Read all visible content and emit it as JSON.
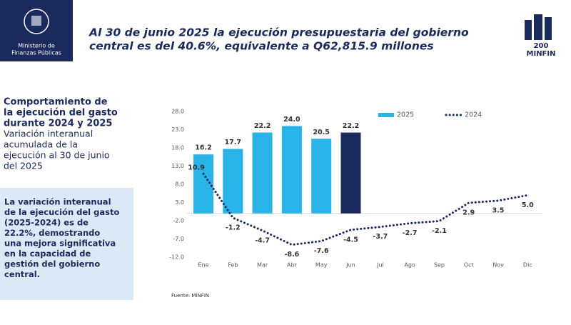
{
  "header": {
    "ministry": [
      "Ministerio de",
      "Finanzas Públicas"
    ],
    "title": [
      "Al 30 de junio 2025 la ejecución presupuestaria del gobierno",
      "central es del 40.6%, equivalente a Q62,815.9 millones"
    ],
    "badge": [
      "200",
      "MINFIN"
    ]
  },
  "side": {
    "heading": [
      "Comportamiento de",
      "la ejecución del gasto",
      "durante 2024 y 2025"
    ],
    "subheading": [
      "Variación interanual",
      "acumulada de la",
      "ejecución al 30 de junio",
      "del 2025"
    ],
    "note": [
      "La variación interanual",
      "de la ejecución del gasto",
      "(2025-2024) es de",
      "22.2%, demostrando",
      "una mejora significativa",
      "en la capacidad de",
      "gestión del gobierno",
      "central."
    ]
  },
  "source": "Fuente: MINFIN",
  "chart_data": {
    "type": "bar_line",
    "categories": [
      "Ene",
      "Feb",
      "Mar",
      "Abr",
      "May",
      "Jun",
      "Jul",
      "Ago",
      "Sep",
      "Oct",
      "Nov",
      "Dic"
    ],
    "series": [
      {
        "name": "2025",
        "type": "bar",
        "color": "#29b3e6",
        "point_colors": [
          "#29b3e6",
          "#29b3e6",
          "#29b3e6",
          "#29b3e6",
          "#29b3e6",
          "#1b2a5c",
          null,
          null,
          null,
          null,
          null,
          null
        ],
        "values": [
          16.2,
          17.7,
          22.2,
          24.0,
          20.5,
          22.2,
          null,
          null,
          null,
          null,
          null,
          null
        ],
        "value_labels": [
          "16.2",
          "17.7",
          "22.2",
          "24.0",
          "20.5",
          "22.2",
          null,
          null,
          null,
          null,
          null,
          null
        ]
      },
      {
        "name": "2024",
        "type": "line",
        "color": "#1b2a5c",
        "values": [
          10.9,
          -1.2,
          -4.7,
          -8.6,
          -7.6,
          -4.5,
          -3.7,
          -2.7,
          -2.1,
          2.9,
          3.5,
          5.0
        ],
        "value_labels": [
          "10.9",
          "-1.2",
          "-4.7",
          "-8.6",
          "-7.6",
          "-4.5",
          "-3.7",
          "-2.7",
          "-2.1",
          "2.9",
          "3.5",
          "5.0"
        ]
      }
    ],
    "ylim": [
      -12,
      28
    ],
    "yticks": [
      {
        "value": 28,
        "label": "28.0"
      },
      {
        "value": 23,
        "label": "23.0"
      },
      {
        "value": 18,
        "label": "18.0"
      },
      {
        "value": 13,
        "label": "13.0"
      },
      {
        "value": 8,
        "label": "8.0"
      },
      {
        "value": 3,
        "label": "3.0"
      },
      {
        "value": -2,
        "label": "-2.0"
      },
      {
        "value": -7,
        "label": "-7.0"
      },
      {
        "value": -12,
        "label": "-12.0"
      }
    ],
    "legend": "top-right"
  }
}
